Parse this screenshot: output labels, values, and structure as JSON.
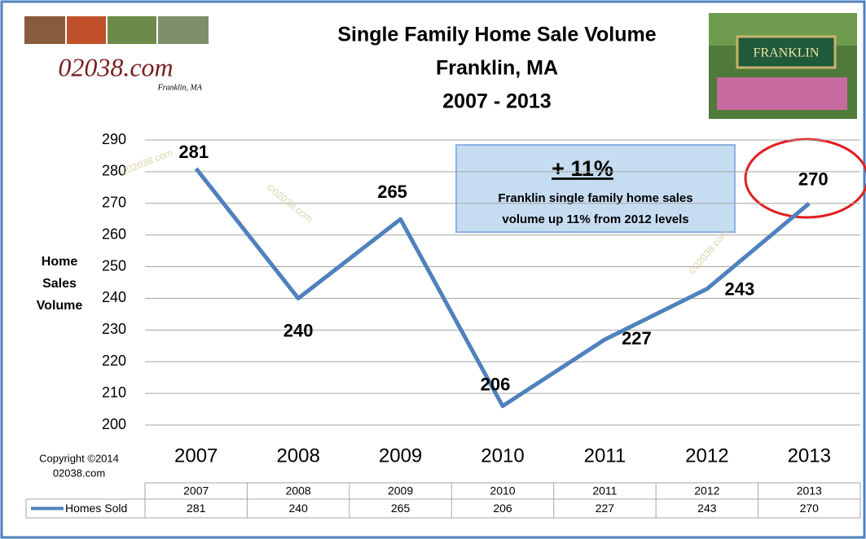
{
  "chart_data": {
    "type": "line",
    "title": [
      "Single Family Home Sale Volume",
      "Franklin, MA",
      "2007 - 2013"
    ],
    "logo": {
      "site": "02038.com",
      "place": "Franklin, MA"
    },
    "sign": "FRANKLIN",
    "ylabel": [
      "Home",
      "Sales",
      "Volume"
    ],
    "copyright": [
      "Copyright ©2014",
      "02038.com"
    ],
    "annotation": {
      "headline": "+ 11%",
      "text": [
        "Franklin single family home sales",
        "volume up 11% from 2012 levels"
      ]
    },
    "watermark": "©02038.com",
    "categories": [
      "2007",
      "2008",
      "2009",
      "2010",
      "2011",
      "2012",
      "2013"
    ],
    "series": [
      {
        "name": "Homes Sold",
        "color": "#4f81bd",
        "values": [
          281,
          240,
          265,
          206,
          227,
          243,
          270
        ]
      }
    ],
    "ylim": [
      200,
      290
    ],
    "yticks": [
      200,
      210,
      220,
      230,
      240,
      250,
      260,
      270,
      280,
      290
    ],
    "grid": true,
    "data_table": true
  }
}
